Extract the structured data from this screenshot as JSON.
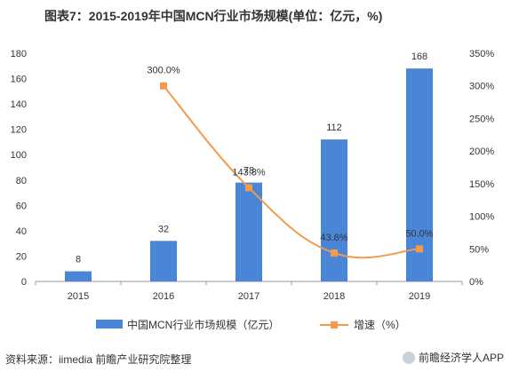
{
  "header": {
    "title": "图表7：2015-2019年中国MCN行业市场规模(单位：亿元，%)"
  },
  "footer": {
    "source": "资料来源：iimedia 前瞻产业研究院整理",
    "brand": "前瞻经济学人APP"
  },
  "colors": {
    "bar": "#4a86d8",
    "line": "#f39a4b",
    "axis": "#999999",
    "text": "#333333"
  },
  "chart_data": {
    "type": "bar",
    "categories": [
      "2015",
      "2016",
      "2017",
      "2018",
      "2019"
    ],
    "series": [
      {
        "name": "中国MCN行业市场规模（亿元）",
        "type": "bar",
        "axis": "left",
        "values": [
          8,
          32,
          78,
          112,
          168
        ],
        "labels": [
          "8",
          "32",
          "78",
          "112",
          "168"
        ]
      },
      {
        "name": "增速（%）",
        "type": "line",
        "axis": "right",
        "x": [
          "2016",
          "2017",
          "2018",
          "2019"
        ],
        "values": [
          300.0,
          143.8,
          43.6,
          50.0
        ],
        "labels": [
          "300.0%",
          "143.8%",
          "43.6%",
          "50.0%"
        ]
      }
    ],
    "y_left": {
      "ylim": [
        0,
        180
      ],
      "ticks": [
        "0",
        "20",
        "40",
        "60",
        "80",
        "100",
        "120",
        "140",
        "160",
        "180"
      ]
    },
    "y_right": {
      "ylim": [
        0,
        350
      ],
      "ticks": [
        "0%",
        "50%",
        "100%",
        "150%",
        "200%",
        "250%",
        "300%",
        "350%"
      ]
    },
    "legend": {
      "position": "bottom"
    },
    "grid": false
  }
}
